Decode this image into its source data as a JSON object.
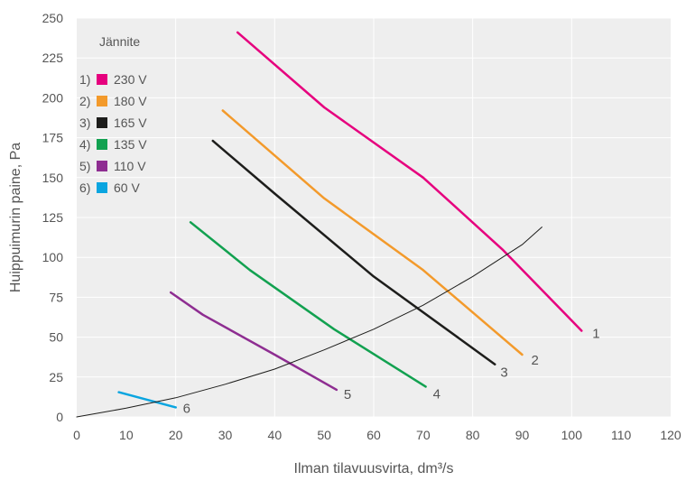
{
  "chart_data": {
    "type": "line",
    "title": "",
    "xlabel": "Ilman tilavuusvirta, dm³/s",
    "ylabel": "Huippuimurin paine, Pa",
    "xlim": [
      0,
      120
    ],
    "ylim": [
      0,
      250
    ],
    "x_ticks": [
      "0",
      "10",
      "20",
      "30",
      "40",
      "50",
      "60",
      "70",
      "80",
      "90",
      "100",
      "110",
      "120"
    ],
    "y_ticks": [
      "0",
      "25",
      "50",
      "75",
      "100",
      "125",
      "150",
      "175",
      "200",
      "225",
      "250"
    ],
    "grid": true,
    "legend": {
      "title": "Jännite",
      "placement": "top-left",
      "entries": [
        {
          "number": "1)",
          "label": "230 V",
          "color": "#e6007e"
        },
        {
          "number": "2)",
          "label": "180 V",
          "color": "#f39a2b"
        },
        {
          "number": "3)",
          "label": "165 V",
          "color": "#1d1d1b"
        },
        {
          "number": "4)",
          "label": "135 V",
          "color": "#12a150"
        },
        {
          "number": "5)",
          "label": "110 V",
          "color": "#8e2d91"
        },
        {
          "number": "6)",
          "label": "60 V",
          "color": "#0aa5e0"
        }
      ]
    },
    "series": [
      {
        "id": "1",
        "name": "230 V",
        "label": "1",
        "color": "#e6007e",
        "x": [
          32.5,
          50,
          70,
          86,
          102
        ],
        "y": [
          241,
          194,
          150,
          105,
          54
        ]
      },
      {
        "id": "2",
        "name": "180 V",
        "label": "2",
        "color": "#f39a2b",
        "x": [
          29.5,
          50,
          70,
          90
        ],
        "y": [
          192,
          137,
          92,
          39
        ]
      },
      {
        "id": "3",
        "name": "165 V",
        "label": "3",
        "color": "#1d1d1b",
        "x": [
          27.5,
          40,
          60,
          84.5
        ],
        "y": [
          173,
          140,
          88,
          33
        ]
      },
      {
        "id": "4",
        "name": "135 V",
        "label": "4",
        "color": "#12a150",
        "x": [
          23,
          35,
          52,
          70.5
        ],
        "y": [
          122,
          92,
          55,
          19
        ]
      },
      {
        "id": "5",
        "name": "110 V",
        "label": "5",
        "color": "#8e2d91",
        "x": [
          19,
          25.5,
          40,
          52.5
        ],
        "y": [
          78,
          64,
          39,
          17
        ]
      },
      {
        "id": "6",
        "name": "60 V",
        "label": "6",
        "color": "#0aa5e0",
        "x": [
          8.5,
          20
        ],
        "y": [
          15.5,
          6
        ]
      },
      {
        "id": "system",
        "name": "",
        "label": "",
        "color": "#1d1d1b",
        "thin": true,
        "x": [
          0,
          10,
          20,
          30,
          40,
          50,
          60,
          70,
          80,
          90,
          94
        ],
        "y": [
          0,
          5.5,
          12,
          20.5,
          30,
          42,
          55,
          70,
          88,
          108,
          119
        ]
      }
    ]
  }
}
